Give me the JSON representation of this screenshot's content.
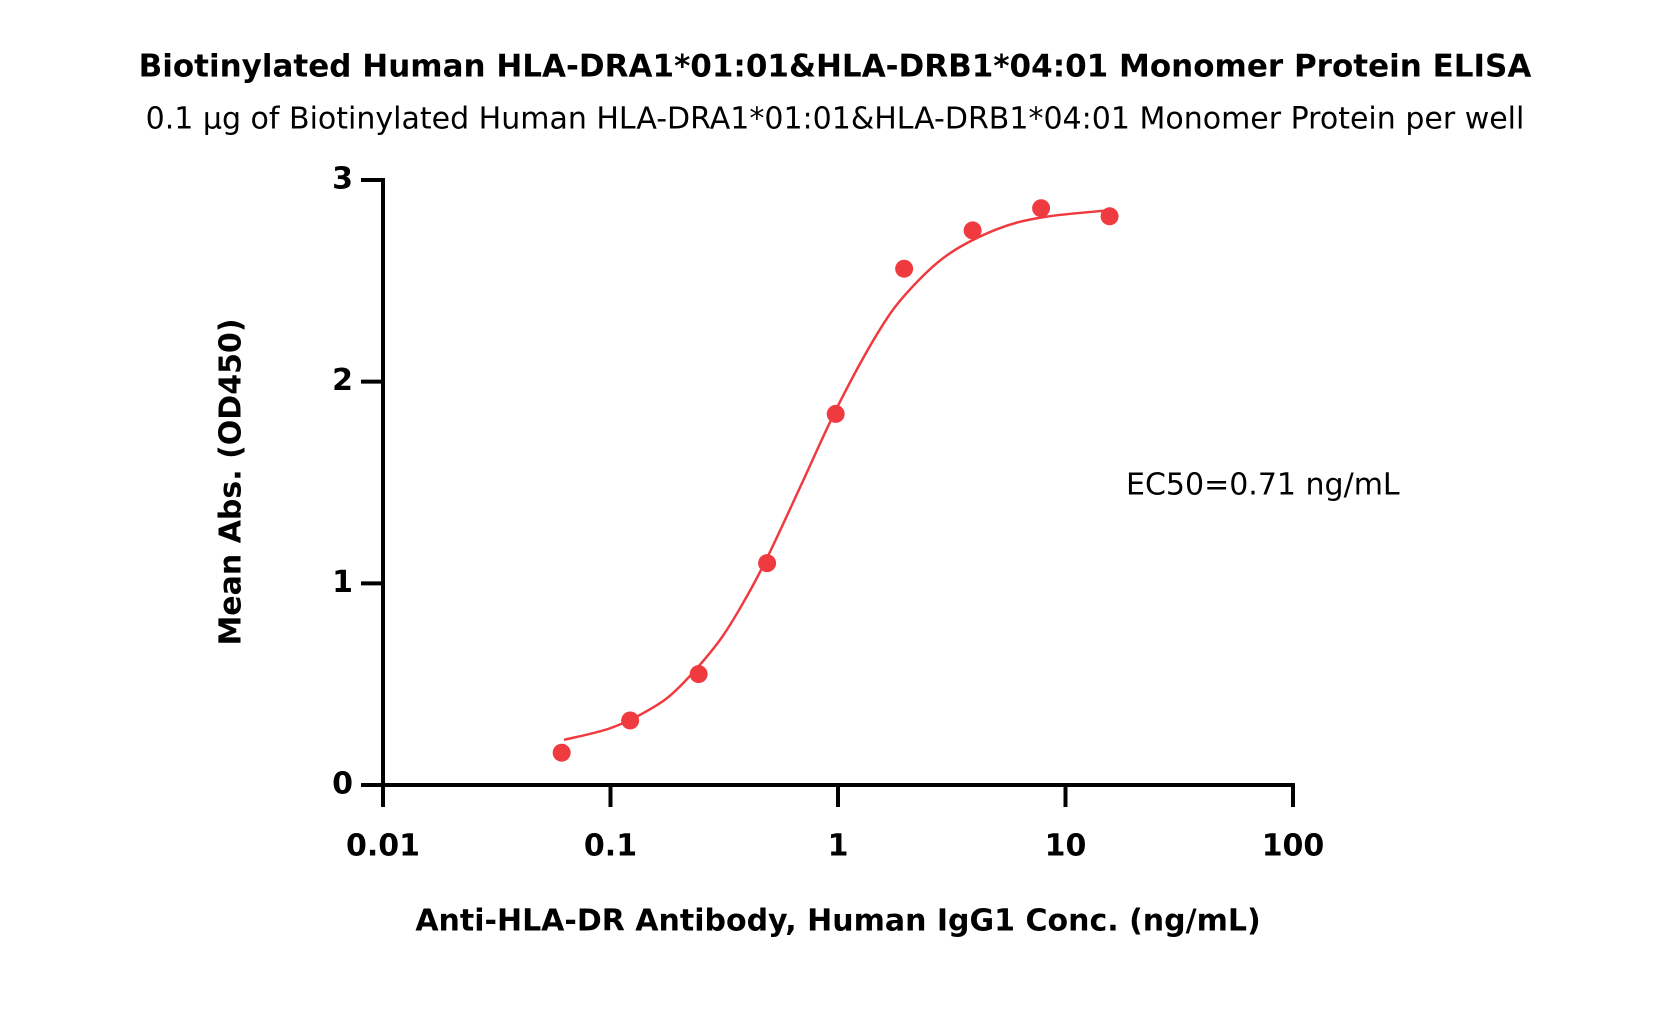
{
  "chart_data": {
    "type": "scatter",
    "title": "Biotinylated Human HLA-DRA1*01:01&HLA-DRB1*04:01 Monomer Protein ELISA",
    "subtitle": "0.1 µg of Biotinylated Human HLA-DRA1*01:01&HLA-DRB1*04:01 Monomer Protein per well",
    "x_label": "Anti-HLA-DR Antibody, Human IgG1 Conc. (ng/mL)",
    "y_label": "Mean Abs. (OD450)",
    "annotation": "EC50=0.71 ng/mL",
    "x_scale": "log",
    "xlim": [
      0.01,
      100
    ],
    "xticks": [
      0.01,
      0.1,
      1,
      10,
      100
    ],
    "ylim": [
      0,
      3
    ],
    "yticks": [
      0,
      1,
      2,
      3
    ],
    "series": [
      {
        "type": "scatter",
        "color": "#ef3b3f",
        "x": [
          0.061,
          0.122,
          0.244,
          0.488,
          0.977,
          1.953,
          3.906,
          7.8125,
          15.625
        ],
        "values": [
          0.16,
          0.32,
          0.55,
          1.1,
          1.84,
          2.56,
          2.75,
          2.86,
          2.82
        ]
      },
      {
        "type": "line",
        "color": "#ef3b3f",
        "x": [
          0.0625,
          0.1,
          0.15,
          0.2,
          0.3,
          0.4,
          0.5,
          0.7,
          1,
          1.5,
          2,
          3,
          5,
          8,
          15.6
        ],
        "values": [
          0.224,
          0.282,
          0.377,
          0.484,
          0.713,
          0.941,
          1.151,
          1.505,
          1.881,
          2.244,
          2.438,
          2.625,
          2.756,
          2.816,
          2.85
        ]
      }
    ]
  }
}
